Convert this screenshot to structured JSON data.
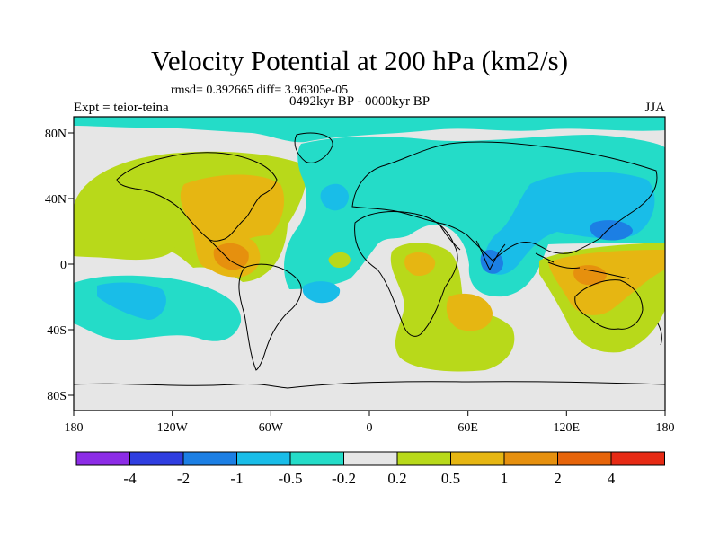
{
  "title": "Velocity Potential at 200 hPa (km2/s)",
  "stats": "rmsd= 0.392665  diff= 3.96305e-05",
  "experiment": "Expt = teior-teina",
  "period": "0492kyr BP - 0000kyr BP",
  "season": "JJA",
  "axes": {
    "lon_labels": [
      "180",
      "120W",
      "60W",
      "0",
      "60E",
      "120E",
      "180"
    ],
    "lat_labels": [
      "80N",
      "40N",
      "0",
      "40S",
      "80S"
    ]
  },
  "colorbar": {
    "colors": [
      "#8c2ce6",
      "#2f3ee0",
      "#1c7fe4",
      "#19bde8",
      "#24dcc8",
      "#e6e6e6",
      "#b8d91a",
      "#e6b612",
      "#e6900e",
      "#e6640a",
      "#e62a14"
    ],
    "labels": [
      "-4",
      "-2",
      "-1",
      "-0.5",
      "-0.2",
      "0.2",
      "0.5",
      "1",
      "2",
      "4"
    ]
  }
}
